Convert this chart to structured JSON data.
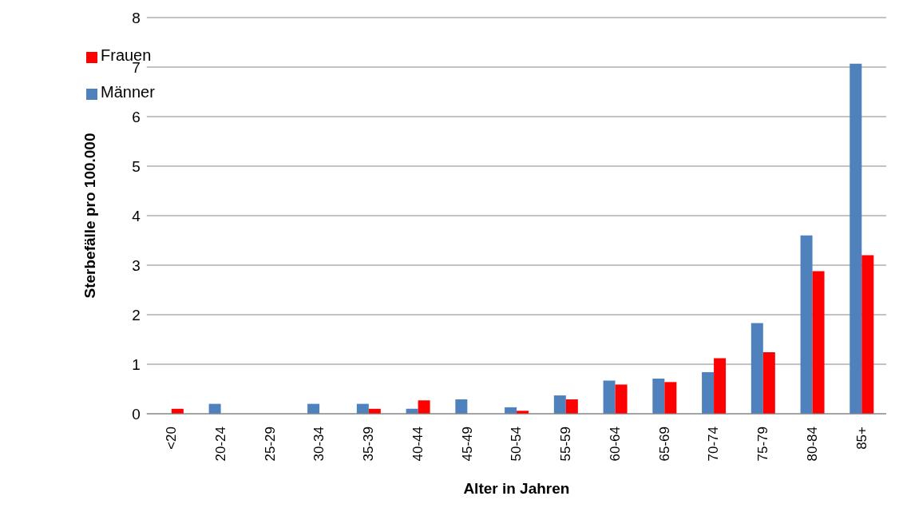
{
  "chart_data": {
    "type": "bar",
    "xlabel": "Alter in Jahren",
    "ylabel": "Sterbefälle pro 100.000",
    "categories": [
      "<20",
      "20-24",
      "25-29",
      "30-34",
      "35-39",
      "40-44",
      "45-49",
      "50-54",
      "55-59",
      "60-64",
      "65-69",
      "70-74",
      "75-79",
      "80-84",
      "85+"
    ],
    "series": [
      {
        "name": "Männer",
        "color": "#4f81bd",
        "values": [
          0,
          0.2,
          0,
          0.2,
          0.2,
          0.1,
          0.29,
          0.13,
          0.37,
          0.67,
          0.71,
          0.84,
          1.83,
          3.6,
          7.07
        ]
      },
      {
        "name": "Frauen",
        "color": "#ff0000",
        "values": [
          0.1,
          0,
          0,
          0,
          0.1,
          0.27,
          0,
          0.06,
          0.29,
          0.59,
          0.64,
          1.12,
          1.24,
          2.88,
          3.2
        ]
      }
    ],
    "ylim": [
      0,
      8
    ],
    "yticks": [
      0,
      1,
      2,
      3,
      4,
      5,
      6,
      7,
      8
    ],
    "grid": "y",
    "legend": "top left"
  }
}
